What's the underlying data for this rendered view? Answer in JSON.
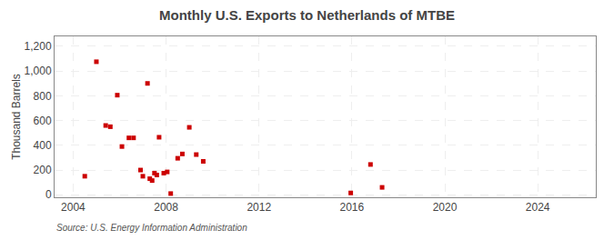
{
  "chart_data": {
    "type": "scatter",
    "title": "Monthly U.S. Exports to Netherlands of MTBE",
    "ylabel": "Thousand Barrels",
    "annotations": [
      "Source: U.S. Energy Information Administration"
    ],
    "x": [
      2004.5,
      2005.0,
      2005.4,
      2005.6,
      2005.9,
      2006.1,
      2006.4,
      2006.6,
      2006.9,
      2007.0,
      2007.2,
      2007.3,
      2007.4,
      2007.5,
      2007.6,
      2007.7,
      2007.9,
      2008.05,
      2008.2,
      2008.5,
      2008.7,
      2009.0,
      2009.3,
      2009.6,
      2015.95,
      2016.8,
      2017.3
    ],
    "values": [
      150,
      1075,
      560,
      550,
      805,
      390,
      460,
      460,
      200,
      150,
      900,
      130,
      115,
      175,
      160,
      465,
      175,
      185,
      10,
      295,
      330,
      545,
      325,
      270,
      15,
      245,
      60
    ],
    "color": "#cc0000",
    "marker": "square",
    "xlim": [
      2003.2,
      2026.5
    ],
    "ylim": [
      -20,
      1280
    ],
    "xticks": [
      2004,
      2008,
      2012,
      2016,
      2020,
      2024
    ],
    "yticks": [
      0,
      200,
      400,
      600,
      800,
      {
        "value": 1000,
        "label": "1,000"
      },
      {
        "value": 1200,
        "label": "1,200"
      }
    ],
    "grid": true
  }
}
